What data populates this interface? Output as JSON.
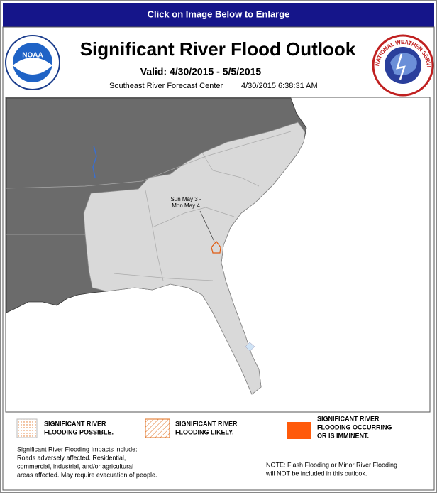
{
  "header": {
    "banner": "Click on Image Below to Enlarge"
  },
  "logos": {
    "noaa": "NOAA",
    "nws": "NATIONAL WEATHER SERVICE"
  },
  "product": {
    "title": "Significant River Flood Outlook",
    "valid": "Valid: 4/30/2015 - 5/5/2015",
    "center": "Southeast River Forecast Center",
    "issued": "4/30/2015 6:38:31 AM"
  },
  "map": {
    "annotation": [
      "Sun May 3 -",
      "Mon May 4"
    ]
  },
  "legend": [
    {
      "lines": [
        "SIGNIFICANT RIVER",
        "FLOODING POSSIBLE."
      ]
    },
    {
      "lines": [
        "SIGNIFICANT RIVER",
        "FLOODING LIKELY."
      ]
    },
    {
      "lines": [
        "SIGNIFICANT RIVER",
        "FLOODING OCCURRING",
        "OR IS IMMINENT."
      ]
    }
  ],
  "impacts": [
    "Significant River Flooding Impacts include:",
    "Roads adversely affected. Residential,",
    "commercial, industrial, and/or agricultural",
    "areas affected. May require evacuation of people."
  ],
  "note": [
    "NOTE: Flash Flooding or Minor River Flooding",
    "will NOT be included in this outlook."
  ]
}
